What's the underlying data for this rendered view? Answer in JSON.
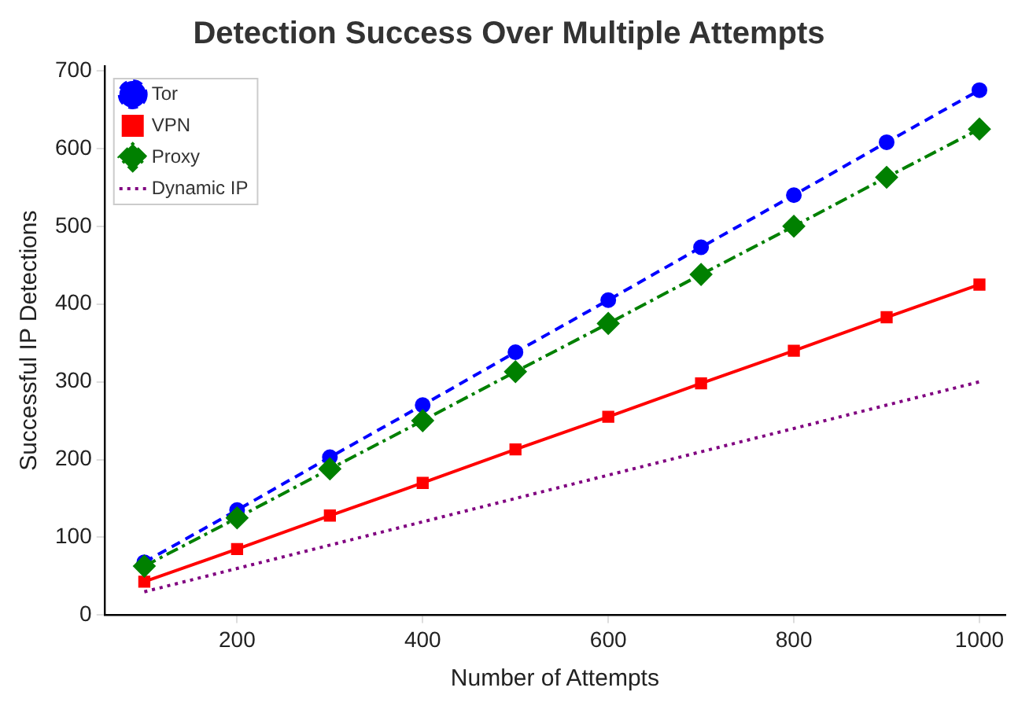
{
  "chart_data": {
    "type": "line",
    "title": "Detection Success Over Multiple Attempts",
    "xlabel": "Number of Attempts",
    "ylabel": "Successful IP Detections",
    "x": [
      100,
      200,
      300,
      400,
      500,
      600,
      700,
      800,
      900,
      1000
    ],
    "series": [
      {
        "name": "Tor",
        "color": "#0000ff",
        "marker": "circle",
        "line_style": "dashed",
        "values": [
          68,
          135,
          203,
          270,
          338,
          405,
          473,
          540,
          608,
          675
        ]
      },
      {
        "name": "VPN",
        "color": "#ff0000",
        "marker": "square",
        "line_style": "solid",
        "values": [
          43,
          85,
          128,
          170,
          213,
          255,
          298,
          340,
          383,
          425
        ]
      },
      {
        "name": "Proxy",
        "color": "#008000",
        "marker": "diamond",
        "line_style": "dashdot",
        "values": [
          63,
          125,
          188,
          250,
          313,
          375,
          438,
          500,
          563,
          625
        ]
      },
      {
        "name": "Dynamic IP",
        "color": "#800080",
        "marker": "none",
        "line_style": "dotted",
        "values": [
          30,
          60,
          90,
          120,
          150,
          180,
          210,
          240,
          270,
          300
        ]
      }
    ],
    "xlim": [
      57,
      1028
    ],
    "xticks": [
      200,
      400,
      600,
      800,
      1000
    ],
    "ylim": [
      0,
      706
    ],
    "yticks": [
      0,
      100,
      200,
      300,
      400,
      500,
      600,
      700
    ],
    "grid": false,
    "legend": "top left"
  }
}
